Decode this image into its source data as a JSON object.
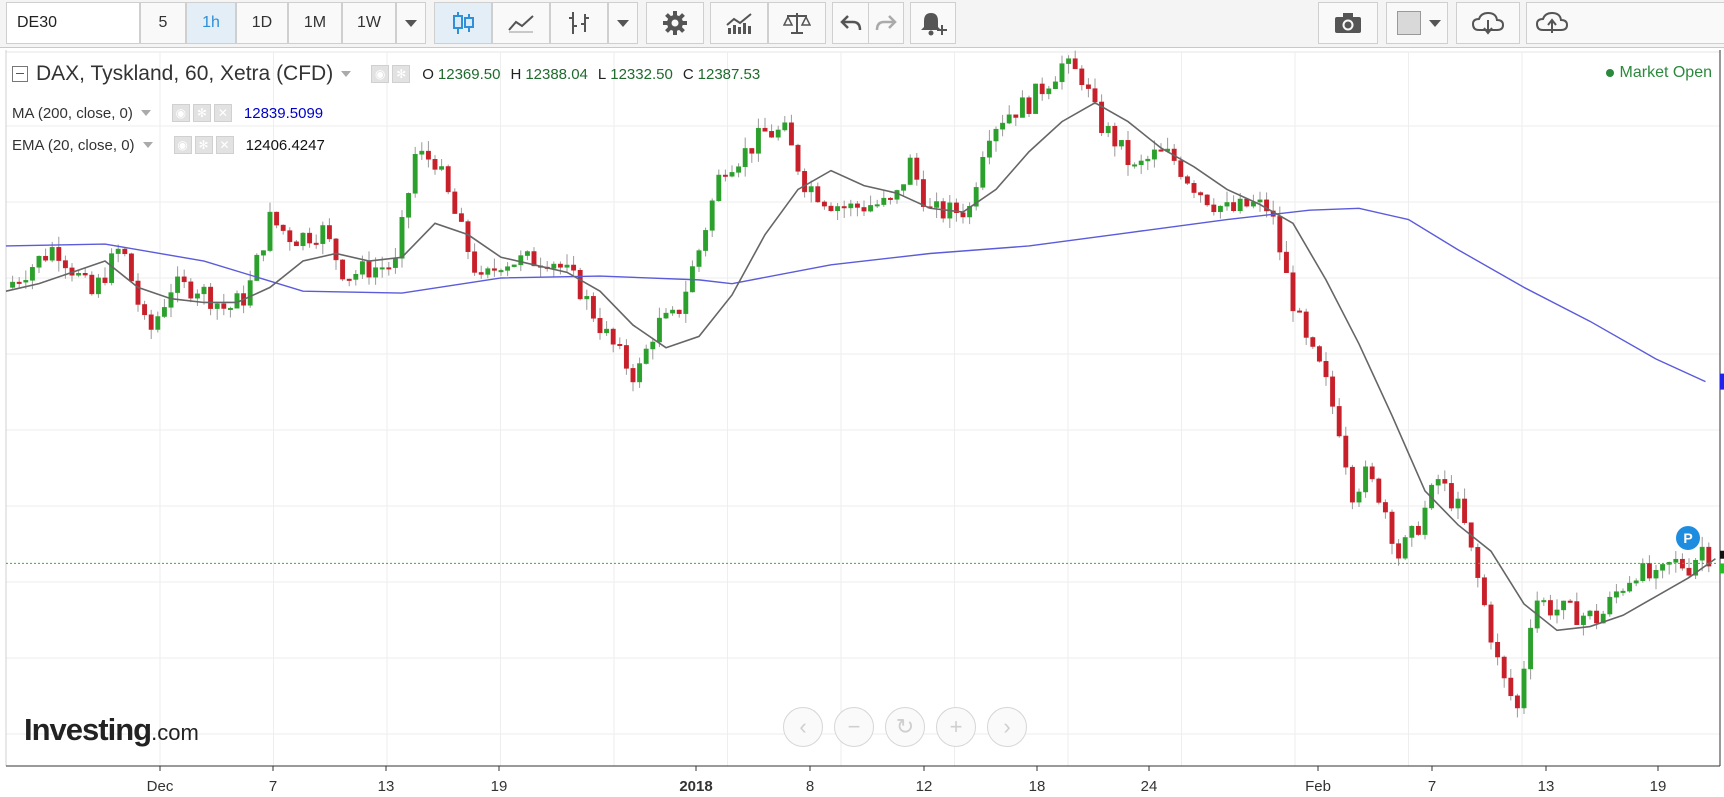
{
  "toolbar": {
    "symbol": "DE30",
    "intervals": [
      "5",
      "1h",
      "1D",
      "1M",
      "1W"
    ],
    "active_interval": "1h",
    "icons": [
      "candlestick-chart-icon",
      "line-chart-icon",
      "bar-style-icon",
      "settings-gear-icon",
      "indicators-icon",
      "compare-scales-icon",
      "undo-icon",
      "redo-icon",
      "add-alert-icon",
      "camera-snapshot-icon",
      "color-box-icon",
      "cloud-save-icon"
    ]
  },
  "legend": {
    "title": "DAX, Tyskland, 60, Xetra (CFD)",
    "open_label": "O",
    "open": "12369.50",
    "high_label": "H",
    "high": "12388.04",
    "low_label": "L",
    "low": "12332.50",
    "close_label": "C",
    "close": "12387.53",
    "ma_label": "MA (200, close, 0)",
    "ma_value": "12839.5099",
    "ema_label": "EMA (20, close, 0)",
    "ema_value": "12406.4247",
    "market_status": "Market Open"
  },
  "brand": {
    "name": "Investing",
    "suffix": ".com"
  },
  "badge": "P",
  "colors": {
    "up": "#2ca02c",
    "down": "#c8202a",
    "ma": "#5b5bdb",
    "ema": "#666666",
    "last_price": "#22c122",
    "ma_value_text": "#0000cc"
  },
  "chart_data": {
    "type": "candlestick",
    "title": "DAX, Tyskland, 60, Xetra (CFD)",
    "x_tick_labels": [
      "Dec",
      "7",
      "13",
      "19",
      "2018",
      "8",
      "12",
      "18",
      "24",
      "Feb",
      "7",
      "13",
      "19"
    ],
    "ylim": [
      11850,
      13750
    ],
    "grid": true,
    "legend_placement": "top-left",
    "close_path": [
      {
        "x": 0.0,
        "y": 13120
      },
      {
        "x": 1.5,
        "y": 13230
      },
      {
        "x": 2.6,
        "y": 13100
      },
      {
        "x": 3.5,
        "y": 13230
      },
      {
        "x": 4.3,
        "y": 12990
      },
      {
        "x": 5.0,
        "y": 13120
      },
      {
        "x": 5.8,
        "y": 13120
      },
      {
        "x": 6.7,
        "y": 13060
      },
      {
        "x": 7.3,
        "y": 13100
      },
      {
        "x": 8.0,
        "y": 13300
      },
      {
        "x": 8.7,
        "y": 13250
      },
      {
        "x": 9.6,
        "y": 13270
      },
      {
        "x": 10.3,
        "y": 13150
      },
      {
        "x": 11.0,
        "y": 13170
      },
      {
        "x": 11.8,
        "y": 13180
      },
      {
        "x": 12.4,
        "y": 13470
      },
      {
        "x": 13.0,
        "y": 13460
      },
      {
        "x": 13.7,
        "y": 13290
      },
      {
        "x": 14.4,
        "y": 13130
      },
      {
        "x": 15.0,
        "y": 13190
      },
      {
        "x": 15.7,
        "y": 13190
      },
      {
        "x": 16.5,
        "y": 13200
      },
      {
        "x": 17.3,
        "y": 13130
      },
      {
        "x": 18.0,
        "y": 13020
      },
      {
        "x": 18.5,
        "y": 12950
      },
      {
        "x": 19.1,
        "y": 12880
      },
      {
        "x": 19.7,
        "y": 13020
      },
      {
        "x": 20.3,
        "y": 13040
      },
      {
        "x": 21.0,
        "y": 13220
      },
      {
        "x": 21.7,
        "y": 13440
      },
      {
        "x": 22.3,
        "y": 13470
      },
      {
        "x": 23.0,
        "y": 13530
      },
      {
        "x": 23.6,
        "y": 13530
      },
      {
        "x": 24.2,
        "y": 13400
      },
      {
        "x": 24.9,
        "y": 13350
      },
      {
        "x": 25.5,
        "y": 13330
      },
      {
        "x": 26.2,
        "y": 13340
      },
      {
        "x": 26.9,
        "y": 13340
      },
      {
        "x": 27.4,
        "y": 13450
      },
      {
        "x": 28.0,
        "y": 13320
      },
      {
        "x": 28.6,
        "y": 13320
      },
      {
        "x": 29.2,
        "y": 13330
      },
      {
        "x": 29.7,
        "y": 13530
      },
      {
        "x": 30.3,
        "y": 13580
      },
      {
        "x": 31.0,
        "y": 13610
      },
      {
        "x": 31.5,
        "y": 13660
      },
      {
        "x": 32.0,
        "y": 13710
      },
      {
        "x": 32.6,
        "y": 13680
      },
      {
        "x": 33.1,
        "y": 13560
      },
      {
        "x": 33.6,
        "y": 13510
      },
      {
        "x": 34.2,
        "y": 13430
      },
      {
        "x": 34.8,
        "y": 13470
      },
      {
        "x": 35.3,
        "y": 13470
      },
      {
        "x": 35.9,
        "y": 13400
      },
      {
        "x": 36.5,
        "y": 13350
      },
      {
        "x": 37.1,
        "y": 13320
      },
      {
        "x": 37.7,
        "y": 13340
      },
      {
        "x": 38.3,
        "y": 13330
      },
      {
        "x": 38.9,
        "y": 13110
      },
      {
        "x": 39.4,
        "y": 12970
      },
      {
        "x": 39.9,
        "y": 12890
      },
      {
        "x": 40.4,
        "y": 12750
      },
      {
        "x": 40.8,
        "y": 12580
      },
      {
        "x": 41.2,
        "y": 12620
      },
      {
        "x": 41.7,
        "y": 12560
      },
      {
        "x": 42.2,
        "y": 12410
      },
      {
        "x": 42.7,
        "y": 12470
      },
      {
        "x": 43.4,
        "y": 12610
      },
      {
        "x": 44.1,
        "y": 12520
      },
      {
        "x": 44.7,
        "y": 12310
      },
      {
        "x": 45.3,
        "y": 12090
      },
      {
        "x": 45.8,
        "y": 12000
      },
      {
        "x": 46.3,
        "y": 12300
      },
      {
        "x": 46.8,
        "y": 12270
      },
      {
        "x": 47.3,
        "y": 12260
      },
      {
        "x": 47.8,
        "y": 12250
      },
      {
        "x": 48.3,
        "y": 12240
      },
      {
        "x": 48.8,
        "y": 12310
      },
      {
        "x": 49.4,
        "y": 12370
      },
      {
        "x": 50.0,
        "y": 12340
      },
      {
        "x": 50.5,
        "y": 12390
      },
      {
        "x": 51.0,
        "y": 12380
      },
      {
        "x": 51.4,
        "y": 12430
      },
      {
        "x": 51.8,
        "y": 12390
      }
    ],
    "series": [
      {
        "name": "MA (200, close, 0)",
        "type": "line",
        "points": [
          {
            "x": 0,
            "y": 13230
          },
          {
            "x": 3,
            "y": 13235
          },
          {
            "x": 6,
            "y": 13190
          },
          {
            "x": 9,
            "y": 13110
          },
          {
            "x": 12,
            "y": 13105
          },
          {
            "x": 15,
            "y": 13145
          },
          {
            "x": 18,
            "y": 13150
          },
          {
            "x": 21,
            "y": 13140
          },
          {
            "x": 22,
            "y": 13130
          },
          {
            "x": 25,
            "y": 13180
          },
          {
            "x": 28,
            "y": 13210
          },
          {
            "x": 31,
            "y": 13230
          },
          {
            "x": 34,
            "y": 13265
          },
          {
            "x": 37,
            "y": 13300
          },
          {
            "x": 39.5,
            "y": 13325
          },
          {
            "x": 41,
            "y": 13330
          },
          {
            "x": 42.5,
            "y": 13300
          },
          {
            "x": 44,
            "y": 13220
          },
          {
            "x": 46,
            "y": 13120
          },
          {
            "x": 48,
            "y": 13030
          },
          {
            "x": 50,
            "y": 12930
          },
          {
            "x": 51.5,
            "y": 12870
          }
        ]
      },
      {
        "name": "EMA (20, close, 0)",
        "type": "line",
        "points": [
          {
            "x": 0,
            "y": 13110
          },
          {
            "x": 1,
            "y": 13130
          },
          {
            "x": 2,
            "y": 13160
          },
          {
            "x": 3,
            "y": 13190
          },
          {
            "x": 4,
            "y": 13120
          },
          {
            "x": 5,
            "y": 13090
          },
          {
            "x": 6,
            "y": 13080
          },
          {
            "x": 7,
            "y": 13080
          },
          {
            "x": 8,
            "y": 13120
          },
          {
            "x": 9,
            "y": 13190
          },
          {
            "x": 10,
            "y": 13210
          },
          {
            "x": 11,
            "y": 13190
          },
          {
            "x": 12,
            "y": 13200
          },
          {
            "x": 13,
            "y": 13290
          },
          {
            "x": 14,
            "y": 13260
          },
          {
            "x": 15,
            "y": 13200
          },
          {
            "x": 16,
            "y": 13180
          },
          {
            "x": 17,
            "y": 13160
          },
          {
            "x": 18,
            "y": 13110
          },
          {
            "x": 19,
            "y": 13020
          },
          {
            "x": 20,
            "y": 12960
          },
          {
            "x": 21,
            "y": 12990
          },
          {
            "x": 22,
            "y": 13100
          },
          {
            "x": 23,
            "y": 13260
          },
          {
            "x": 24,
            "y": 13380
          },
          {
            "x": 25,
            "y": 13430
          },
          {
            "x": 26,
            "y": 13390
          },
          {
            "x": 27,
            "y": 13370
          },
          {
            "x": 28,
            "y": 13330
          },
          {
            "x": 29,
            "y": 13320
          },
          {
            "x": 30,
            "y": 13380
          },
          {
            "x": 31,
            "y": 13480
          },
          {
            "x": 32,
            "y": 13560
          },
          {
            "x": 33,
            "y": 13610
          },
          {
            "x": 34,
            "y": 13560
          },
          {
            "x": 35,
            "y": 13490
          },
          {
            "x": 36,
            "y": 13440
          },
          {
            "x": 37,
            "y": 13380
          },
          {
            "x": 38,
            "y": 13340
          },
          {
            "x": 39,
            "y": 13290
          },
          {
            "x": 40,
            "y": 13140
          },
          {
            "x": 41,
            "y": 12970
          },
          {
            "x": 42,
            "y": 12780
          },
          {
            "x": 43,
            "y": 12580
          },
          {
            "x": 44,
            "y": 12490
          },
          {
            "x": 45,
            "y": 12420
          },
          {
            "x": 46,
            "y": 12280
          },
          {
            "x": 47,
            "y": 12210
          },
          {
            "x": 48,
            "y": 12220
          },
          {
            "x": 49,
            "y": 12250
          },
          {
            "x": 50,
            "y": 12300
          },
          {
            "x": 51,
            "y": 12350
          },
          {
            "x": 51.8,
            "y": 12400
          }
        ]
      }
    ],
    "last_price": 12387.53
  }
}
